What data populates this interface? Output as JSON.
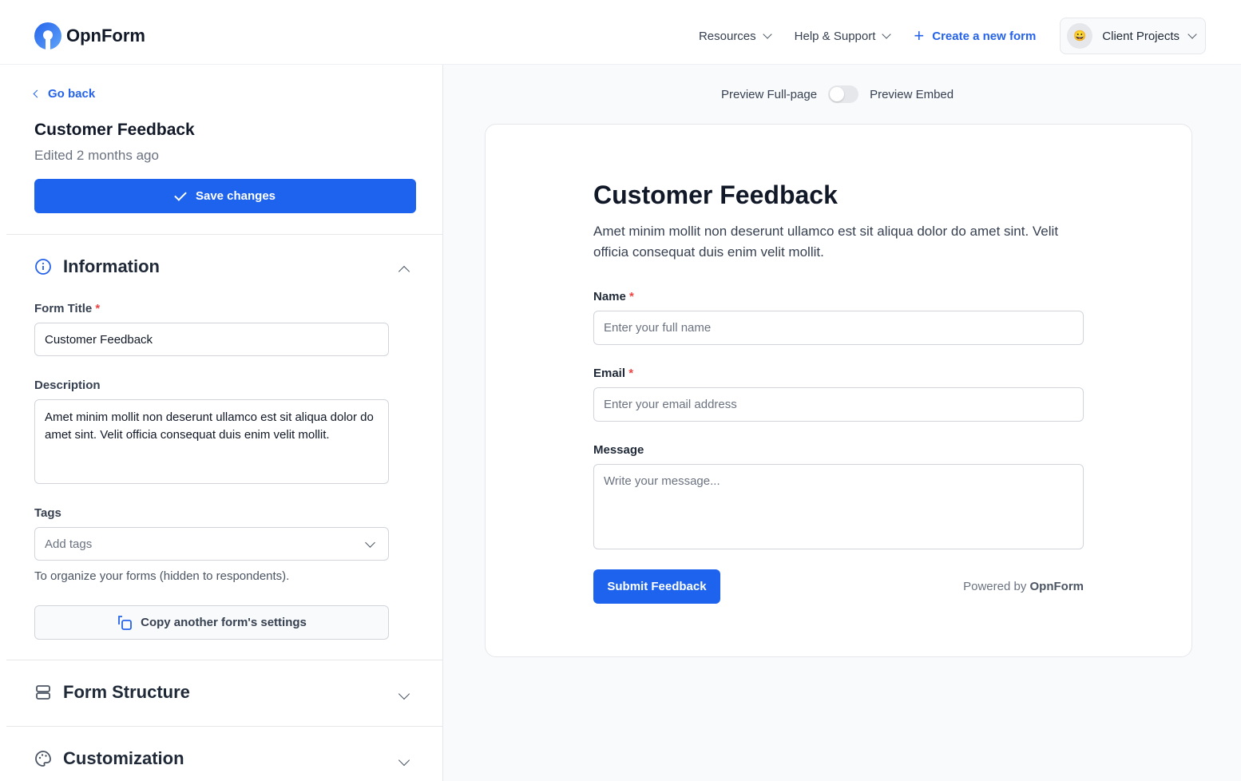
{
  "header": {
    "brand": "OpnForm",
    "nav": [
      {
        "label": "Resources"
      },
      {
        "label": "Help & Support"
      }
    ],
    "create_label": "Create a new form",
    "workspace": {
      "emoji": "😀",
      "label": "Client Projects"
    }
  },
  "sidebar": {
    "back_label": "Go back",
    "form_title": "Customer Feedback",
    "edited": "Edited 2 months ago",
    "save_label": "Save changes",
    "information": {
      "title": "Information",
      "form_title_label": "Form Title",
      "form_title_value": "Customer Feedback",
      "description_label": "Description",
      "description_value": "Amet minim mollit non deserunt ullamco est sit aliqua dolor do amet sint. Velit officia consequat duis enim velit mollit.",
      "tags_label": "Tags",
      "tags_placeholder": "Add tags",
      "tags_help": "To organize your forms (hidden to respondents).",
      "copy_label": "Copy another form's settings"
    },
    "sections": [
      {
        "title": "Form Structure"
      },
      {
        "title": "Customization"
      }
    ]
  },
  "preview": {
    "toggle_left": "Preview Full-page",
    "toggle_right": "Preview Embed",
    "toggle_on": false,
    "title": "Customer Feedback",
    "description": "Amet minim mollit non deserunt ullamco est sit aliqua dolor do amet sint. Velit officia consequat duis enim velit mollit.",
    "fields": [
      {
        "label": "Name",
        "required": "*",
        "placeholder": "Enter your full name"
      },
      {
        "label": "Email",
        "required": "*",
        "placeholder": "Enter your email address"
      },
      {
        "label": "Message",
        "placeholder": "Write your message..."
      }
    ],
    "submit_label": "Submit Feedback",
    "powered_prefix": "Powered by",
    "powered_brand": "OpnForm"
  },
  "colors": {
    "accent": "#1d63ed",
    "required": "#ef4444"
  }
}
